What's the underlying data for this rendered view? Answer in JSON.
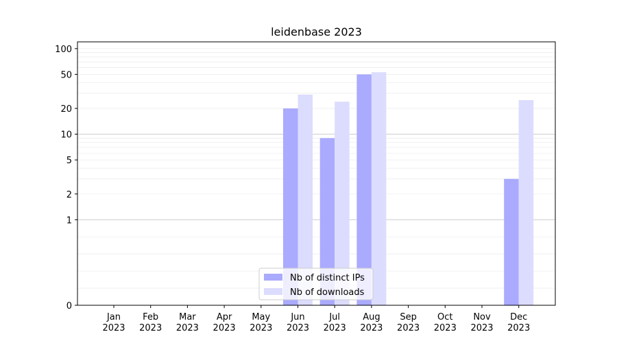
{
  "chart_data": {
    "type": "bar",
    "title": "leidenbase 2023",
    "xlabel": "",
    "ylabel": "",
    "yscale": "symlog",
    "ylim": [
      0,
      120
    ],
    "categories": [
      [
        "Jan",
        "2023"
      ],
      [
        "Feb",
        "2023"
      ],
      [
        "Mar",
        "2023"
      ],
      [
        "Apr",
        "2023"
      ],
      [
        "May",
        "2023"
      ],
      [
        "Jun",
        "2023"
      ],
      [
        "Jul",
        "2023"
      ],
      [
        "Aug",
        "2023"
      ],
      [
        "Sep",
        "2023"
      ],
      [
        "Oct",
        "2023"
      ],
      [
        "Nov",
        "2023"
      ],
      [
        "Dec",
        "2023"
      ]
    ],
    "yticks": [
      0,
      1,
      2,
      5,
      10,
      20,
      50,
      100
    ],
    "grid": true,
    "legend_position": "bottom-center",
    "series": [
      {
        "name": "Nb of distinct IPs",
        "color": "#aaaaff",
        "values": [
          0,
          0,
          0,
          0,
          0,
          20,
          9,
          50,
          0,
          0,
          0,
          3
        ]
      },
      {
        "name": "Nb of downloads",
        "color": "#dcdcfe",
        "values": [
          0,
          0,
          0,
          0,
          0,
          29,
          24,
          53,
          0,
          0,
          0,
          25
        ]
      }
    ]
  }
}
